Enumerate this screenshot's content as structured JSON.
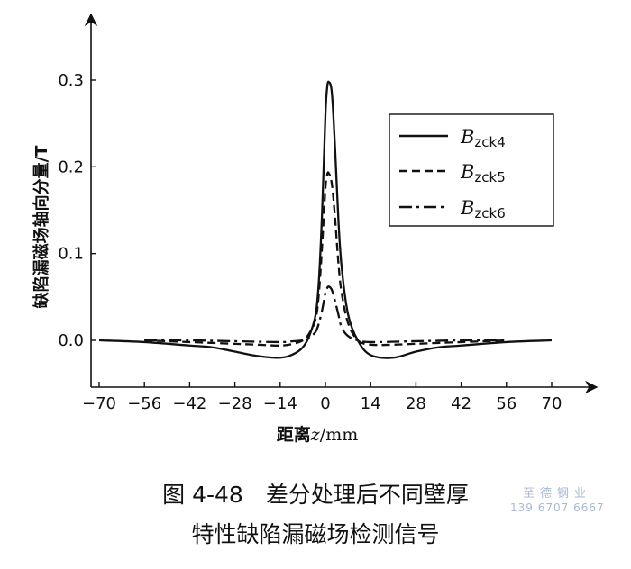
{
  "chart_data": {
    "type": "line",
    "ylabel": "缺陷漏磁场轴向分量/T",
    "xlabel_prefix": "距离",
    "xlabel_var": "z",
    "xlabel_unit": "/mm",
    "xlim": [
      -70,
      70
    ],
    "ylim": [
      -0.03,
      0.32
    ],
    "xticks": [
      -70,
      -56,
      -42,
      -28,
      -14,
      0,
      14,
      28,
      42,
      56,
      70
    ],
    "xtick_labels": [
      "−70",
      "−56",
      "−42",
      "−28",
      "−14",
      "0",
      "14",
      "28",
      "42",
      "56",
      "70"
    ],
    "yticks": [
      0.0,
      0.1,
      0.2,
      0.3
    ],
    "ytick_labels": [
      "0.0",
      "0.1",
      "0.2",
      "0.3"
    ],
    "grid": false,
    "legend_position": "top-right",
    "series": [
      {
        "name": "Bzck4",
        "name_main": "B",
        "name_sub": "zck4",
        "style": "solid",
        "x": [
          -70,
          -56,
          -42,
          -35,
          -28,
          -21,
          -14,
          -10,
          -7,
          -5,
          -3,
          -2,
          -1,
          0,
          0.5,
          1,
          2,
          3,
          4,
          5,
          7,
          10,
          14,
          21,
          28,
          35,
          42,
          56,
          70
        ],
        "y": [
          0.0,
          -0.002,
          -0.006,
          -0.008,
          -0.013,
          -0.018,
          -0.02,
          -0.016,
          -0.008,
          0.005,
          0.03,
          0.07,
          0.15,
          0.26,
          0.29,
          0.298,
          0.285,
          0.22,
          0.14,
          0.085,
          0.03,
          0.0,
          -0.017,
          -0.02,
          -0.013,
          -0.008,
          -0.006,
          -0.002,
          0.0
        ]
      },
      {
        "name": "Bzck5",
        "name_main": "B",
        "name_sub": "zck5",
        "style": "dashed",
        "x": [
          -56,
          -42,
          -28,
          -21,
          -14,
          -10,
          -7,
          -5,
          -3,
          -2,
          -1,
          0,
          0.5,
          1,
          2,
          3,
          4,
          5,
          7,
          10,
          14,
          21,
          28,
          42,
          56
        ],
        "y": [
          0.0,
          -0.002,
          -0.004,
          -0.005,
          -0.006,
          -0.004,
          0.0,
          0.008,
          0.025,
          0.055,
          0.11,
          0.175,
          0.19,
          0.193,
          0.18,
          0.14,
          0.09,
          0.055,
          0.02,
          0.0,
          -0.005,
          -0.005,
          -0.004,
          -0.002,
          0.0
        ]
      },
      {
        "name": "Bzck6",
        "name_main": "B",
        "name_sub": "zck6",
        "style": "dashdot",
        "x": [
          -56,
          -42,
          -28,
          -14,
          -10,
          -7,
          -5,
          -3,
          -2,
          -1,
          0,
          0.5,
          1,
          2,
          3,
          4,
          5,
          7,
          10,
          14,
          28,
          42,
          56
        ],
        "y": [
          0.0,
          0.0,
          -0.001,
          -0.002,
          -0.001,
          0.0,
          0.003,
          0.01,
          0.02,
          0.035,
          0.055,
          0.06,
          0.062,
          0.058,
          0.045,
          0.03,
          0.015,
          0.005,
          0.0,
          -0.002,
          -0.001,
          0.0,
          0.0
        ]
      }
    ]
  },
  "caption": {
    "line1": "图 4-48　差分处理后不同壁厚",
    "line2": "特性缺陷漏磁场检测信号"
  },
  "watermark": {
    "line1": "至德钢业",
    "line2": "139 6707 6667"
  }
}
